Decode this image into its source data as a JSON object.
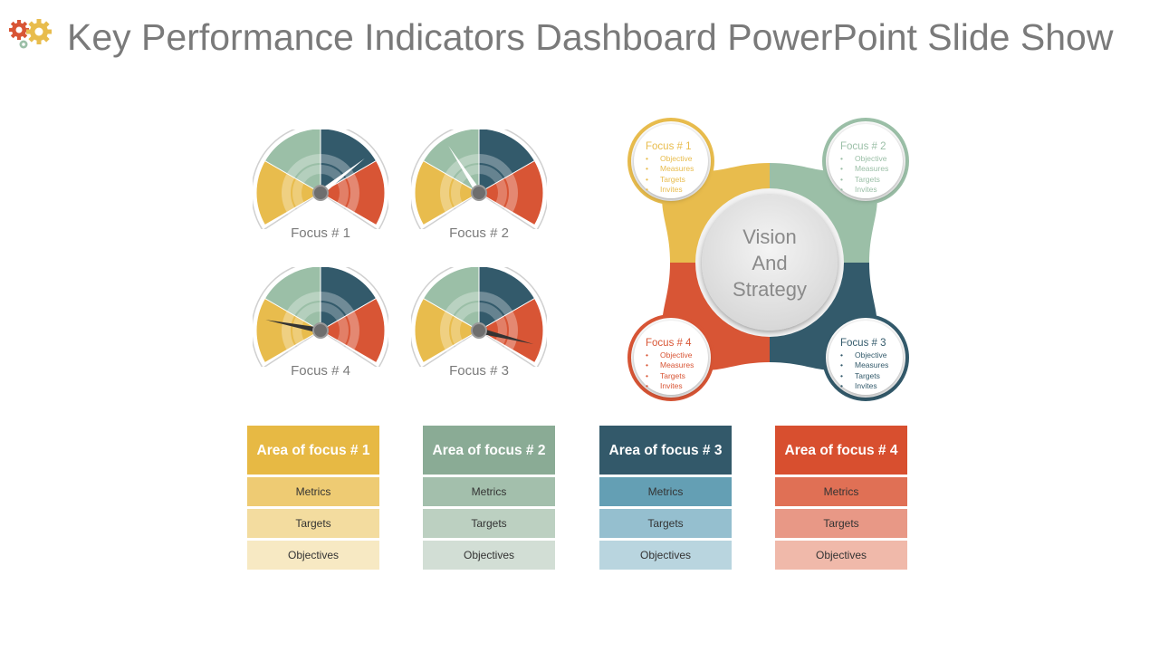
{
  "header": {
    "title": "Key Performance Indicators Dashboard PowerPoint Slide Show"
  },
  "colors": {
    "yellow": "#e8bc4d",
    "green": "#9bbfa7",
    "navy": "#335a6b",
    "red": "#d85535",
    "title_gray": "#7a7a7a"
  },
  "gauges": [
    {
      "label": "Focus # 1",
      "needle_angle_deg": 52
    },
    {
      "label": "Focus # 2",
      "needle_angle_deg": -33
    },
    {
      "label": "Focus # 4",
      "needle_angle_deg": -79
    },
    {
      "label": "Focus # 3",
      "needle_angle_deg": 104
    }
  ],
  "diagram": {
    "center_text": [
      "Vision",
      "And",
      "Strategy"
    ],
    "foci": [
      {
        "title": "Focus # 1",
        "items": [
          "Objective",
          "Measures",
          "Targets",
          "Invites"
        ]
      },
      {
        "title": "Focus # 2",
        "items": [
          "Objective",
          "Measures",
          "Targets",
          "Invites"
        ]
      },
      {
        "title": "Focus # 4",
        "items": [
          "Objective",
          "Measures",
          "Targets",
          "Invites"
        ]
      },
      {
        "title": "Focus # 3",
        "items": [
          "Objective",
          "Measures",
          "Targets",
          "Invites"
        ]
      }
    ]
  },
  "cards": [
    {
      "title": "Area of focus # 1",
      "rows": [
        "Metrics",
        "Targets",
        "Objectives"
      ]
    },
    {
      "title": "Area of focus # 2",
      "rows": [
        "Metrics",
        "Targets",
        "Objectives"
      ]
    },
    {
      "title": "Area of focus # 3",
      "rows": [
        "Metrics",
        "Targets",
        "Objectives"
      ]
    },
    {
      "title": "Area of focus # 4",
      "rows": [
        "Metrics",
        "Targets",
        "Objectives"
      ]
    }
  ]
}
